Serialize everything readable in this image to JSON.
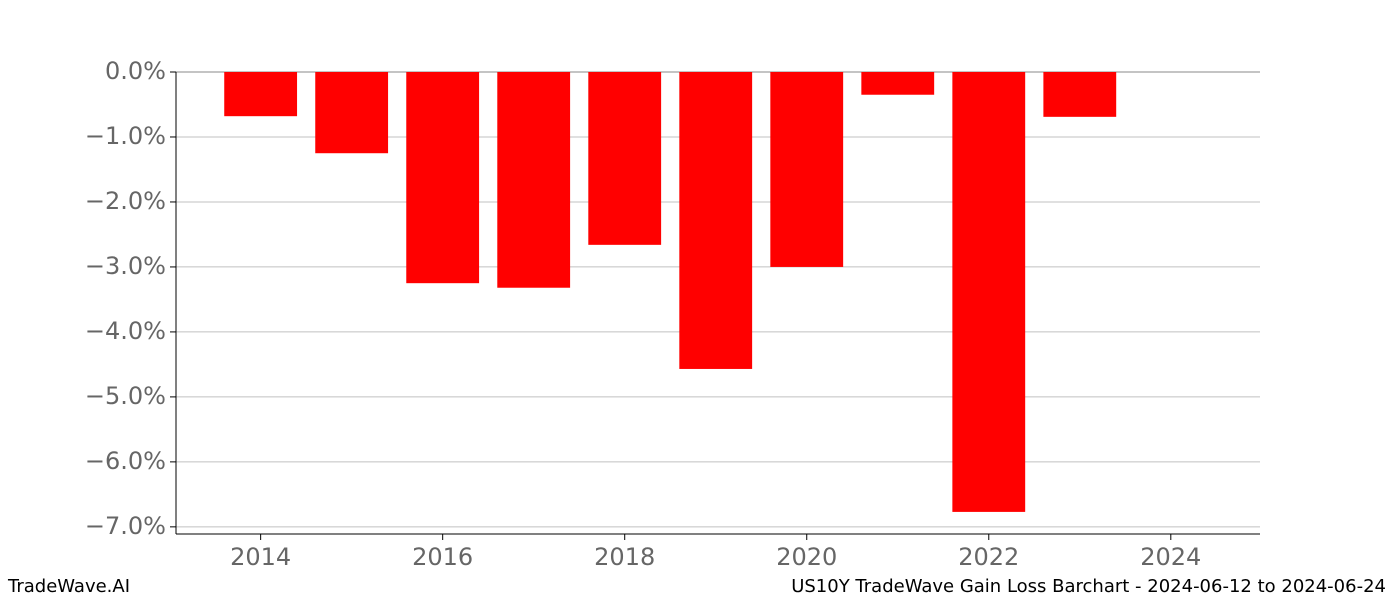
{
  "chart_data": {
    "type": "bar",
    "title": "US10Y TradeWave Gain Loss Barchart - 2024-06-12 to 2024-06-24",
    "watermark": "TradeWave.AI",
    "x": [
      2014,
      2015,
      2016,
      2017,
      2018,
      2019,
      2020,
      2021,
      2022,
      2023
    ],
    "values": [
      -0.68,
      -1.25,
      -3.25,
      -3.32,
      -2.66,
      -4.57,
      -3.0,
      -0.35,
      -6.77,
      -0.69
    ],
    "color": "#ff0000",
    "xlim": [
      2013.07,
      2024.98
    ],
    "xticks": [
      2014,
      2016,
      2018,
      2020,
      2022,
      2024
    ],
    "ylim": [
      -7.11,
      0
    ],
    "yticks": [
      {
        "value": 0,
        "label": "0.0%"
      },
      {
        "value": -1,
        "label": "−1.0%"
      },
      {
        "value": -2,
        "label": "−2.0%"
      },
      {
        "value": -3,
        "label": "−3.0%"
      },
      {
        "value": -4,
        "label": "−4.0%"
      },
      {
        "value": -5,
        "label": "−5.0%"
      },
      {
        "value": -6,
        "label": "−6.0%"
      },
      {
        "value": -7,
        "label": "−7.0%"
      }
    ],
    "grid": true
  }
}
